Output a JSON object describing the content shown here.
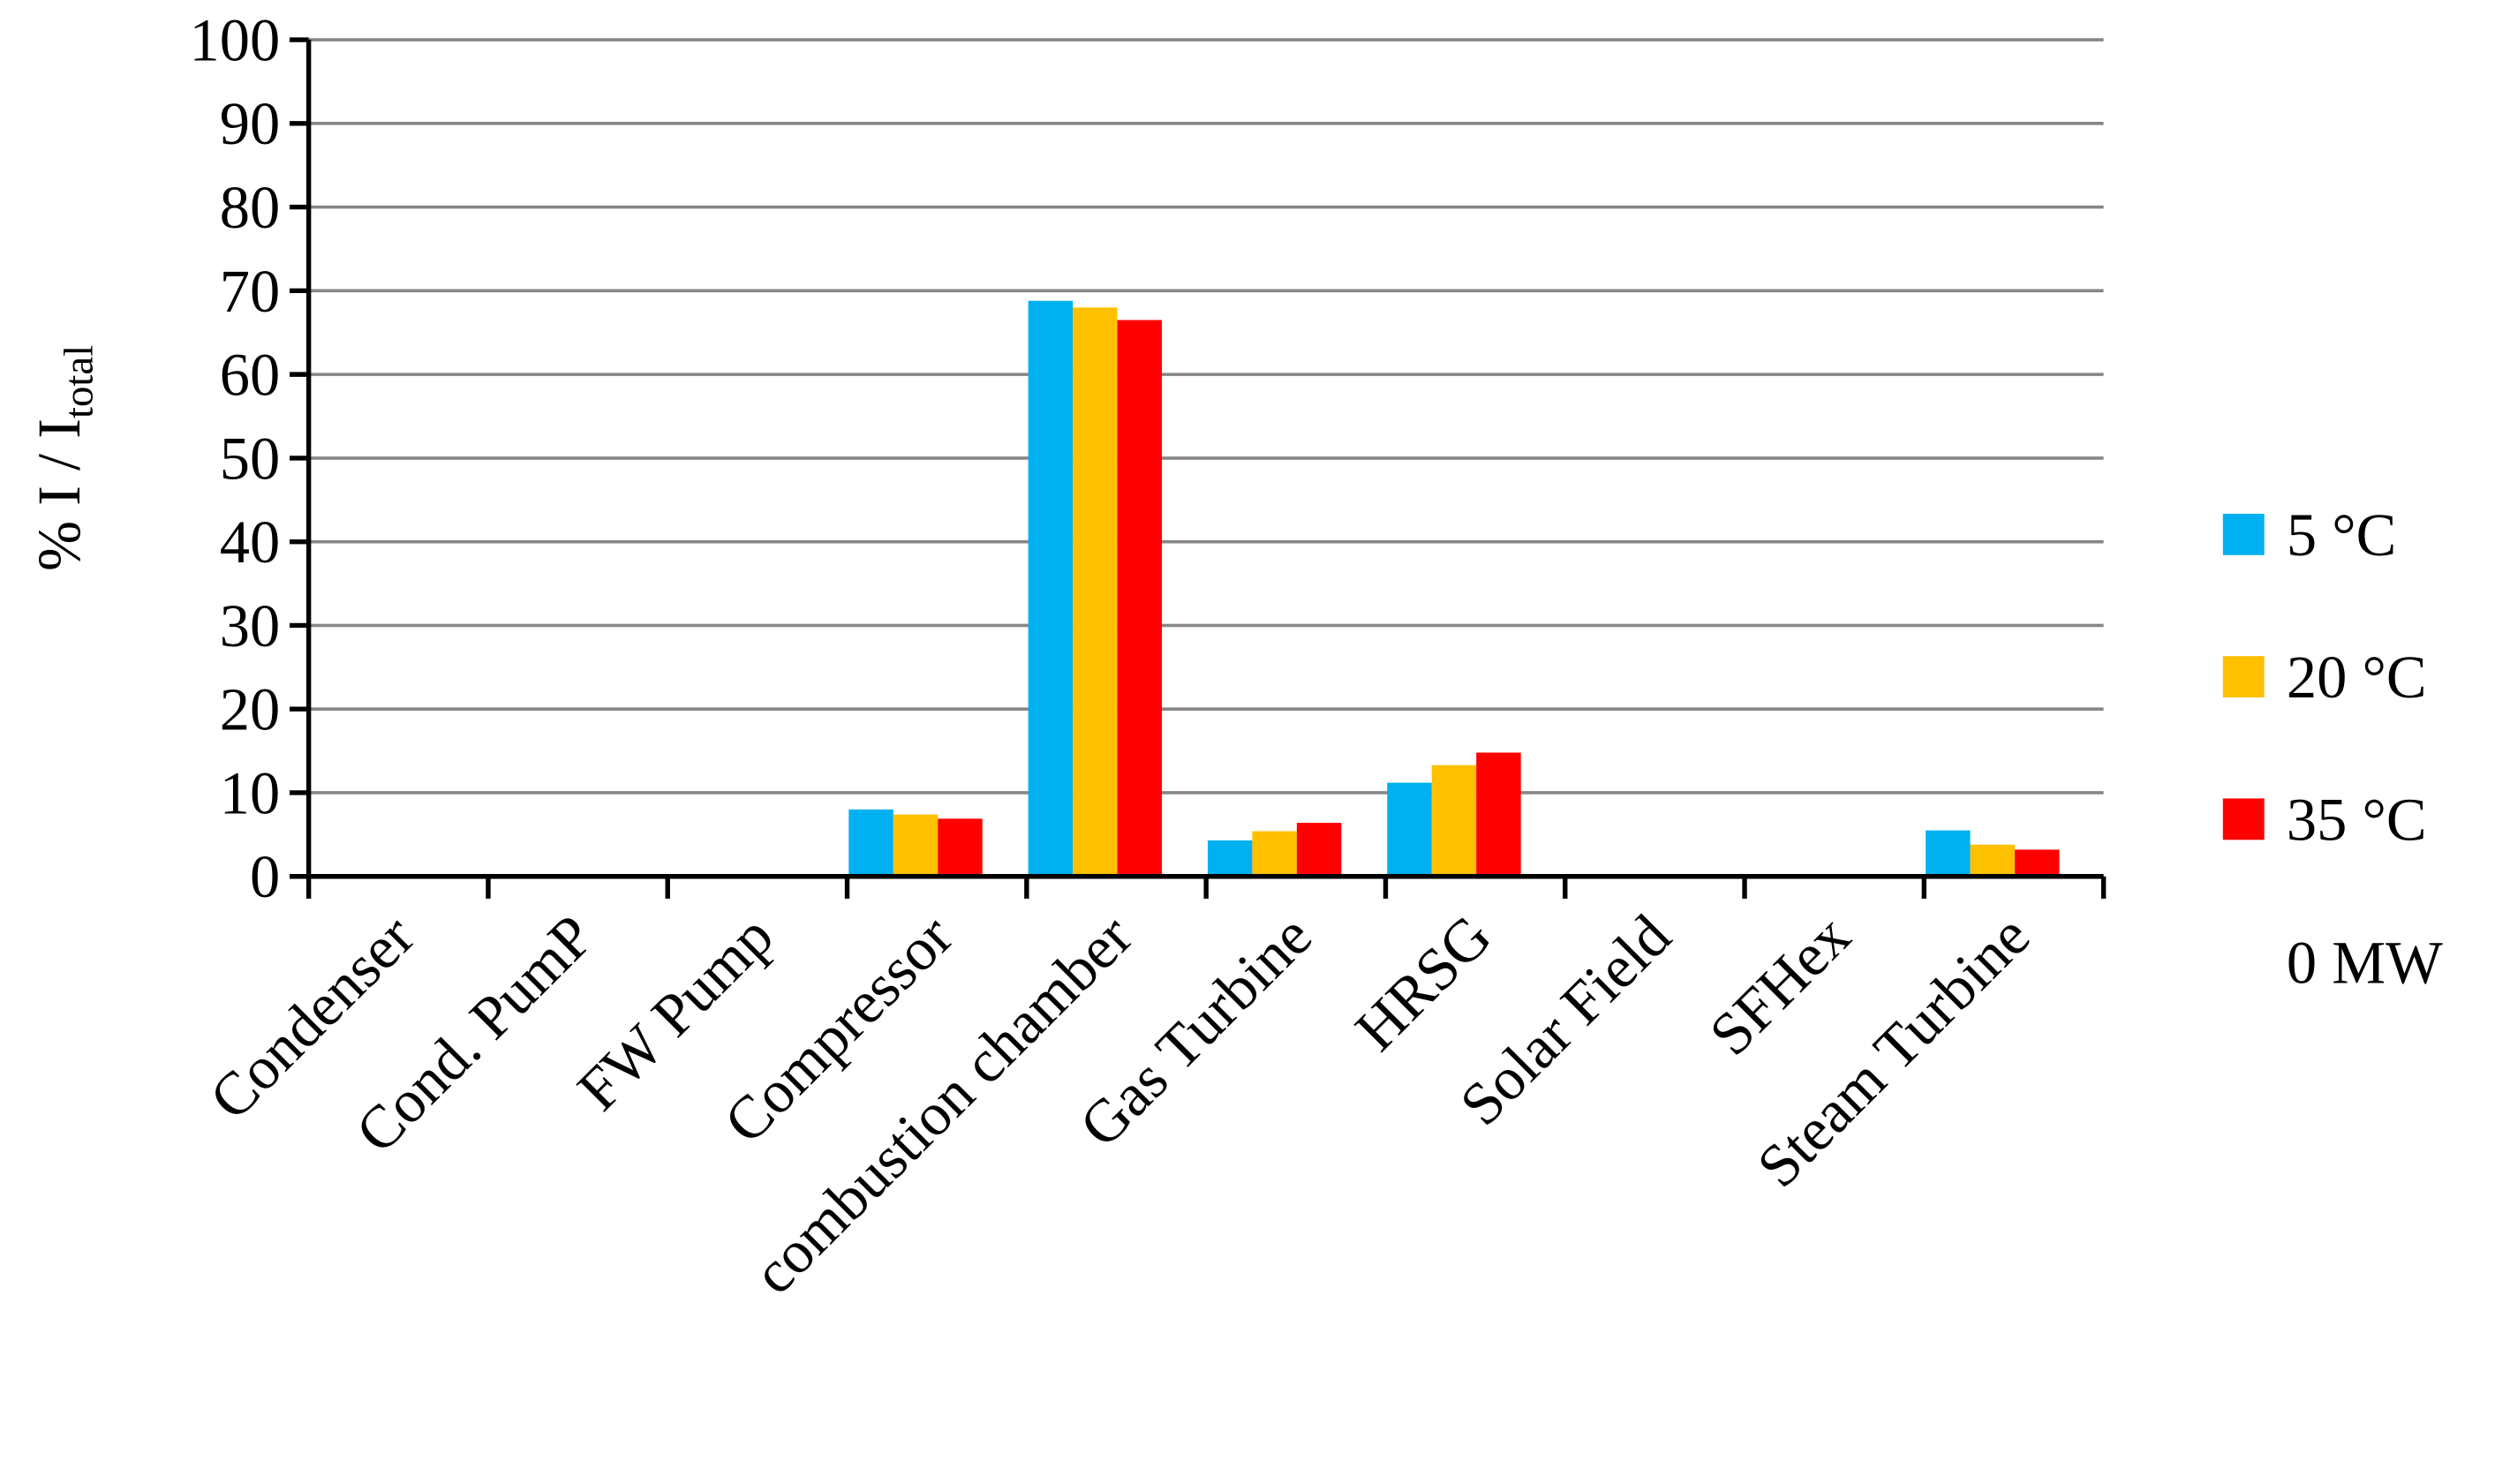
{
  "chart_data": {
    "type": "bar",
    "ylabel": {
      "text": "% I / I",
      "subscript": "total"
    },
    "categories": [
      "Condenser",
      "Cond. PumP",
      "FW Pump",
      "Compressor",
      "combustion chamber",
      "Gas Turbine",
      "HRSG",
      "Solar Field",
      "SFHex",
      "Steam Turbine"
    ],
    "series": [
      {
        "name": "5 °C",
        "color": "#00b0f0",
        "values": [
          0,
          0,
          0,
          8,
          68.8,
          4.3,
          11.2,
          0,
          0,
          5.5
        ]
      },
      {
        "name": "20 °C",
        "color": "#ffc000",
        "values": [
          0,
          0,
          0,
          7.4,
          68,
          5.4,
          13.3,
          0,
          0,
          3.8
        ]
      },
      {
        "name": "35 °C",
        "color": "#ff0000",
        "values": [
          0,
          0,
          0,
          6.9,
          66.5,
          6.4,
          14.8,
          0,
          0,
          3.2
        ]
      }
    ],
    "annotation": "0 MW",
    "ylim": [
      0,
      100
    ],
    "yticks": [
      0,
      10,
      20,
      30,
      40,
      50,
      60,
      70,
      80,
      90,
      100
    ],
    "grid": true,
    "legend": "right"
  }
}
